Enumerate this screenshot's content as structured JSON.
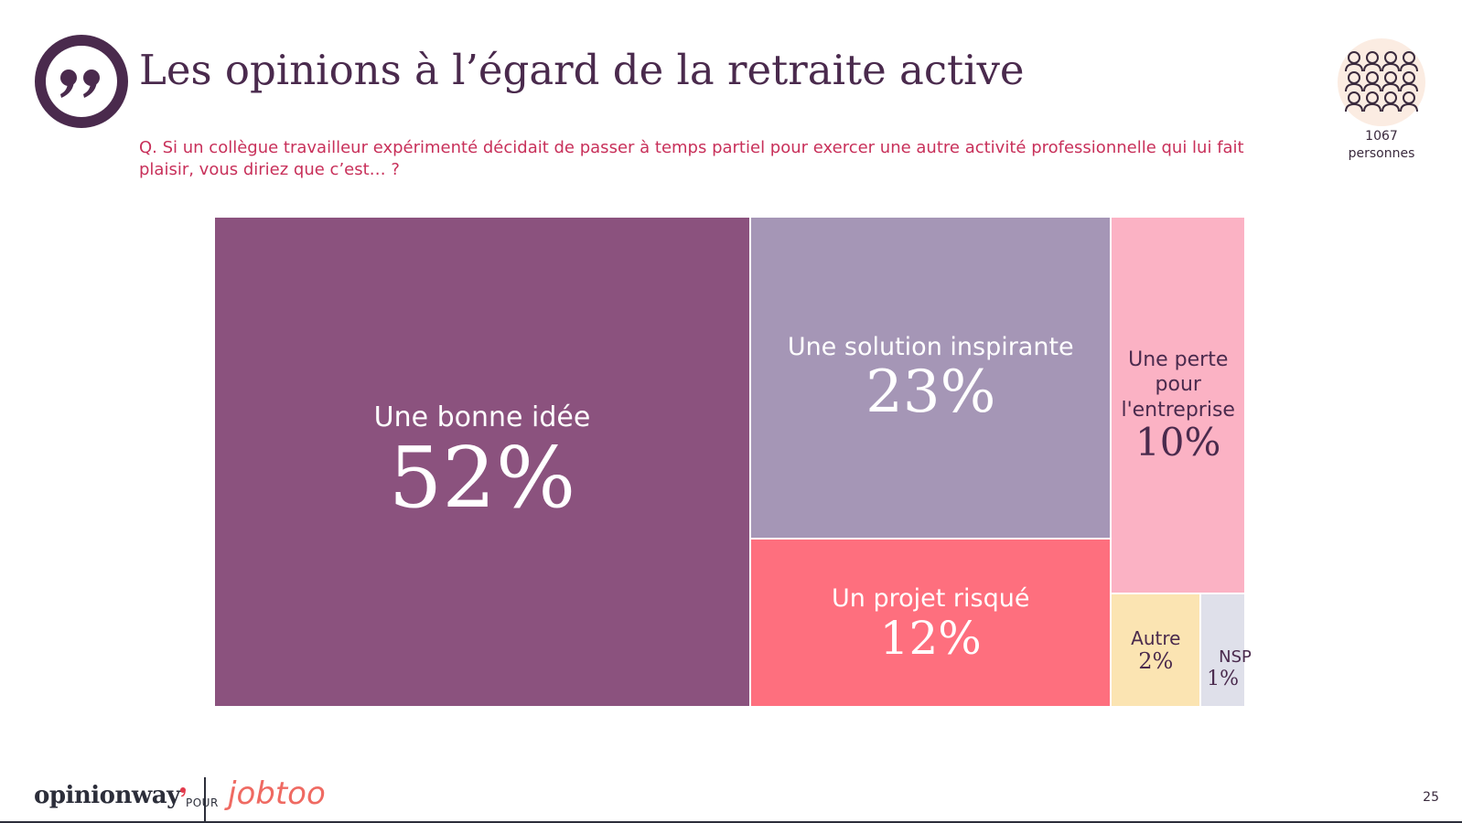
{
  "header": {
    "title": "Les opinions à l’égard de la retraite active",
    "question": "Q. Si un collègue travailleur expérimenté décidait de passer à temps partiel pour exercer une autre activité professionnelle qui lui fait plaisir, vous diriez que c’est… ?"
  },
  "sample": {
    "count": "1067",
    "unit": "personnes",
    "icon": "people-group-icon"
  },
  "icons": {
    "quote": "quote-icon"
  },
  "colors": {
    "title": "#4a2a4d",
    "question": "#c8305a",
    "quote": "#4a2a4d"
  },
  "chart_data": {
    "type": "treemap",
    "title": "Les opinions à l’égard de la retraite active",
    "series": [
      {
        "label": "Une bonne idée",
        "value": 52,
        "display": "52%",
        "color": "#8b527e",
        "text_color": "#ffffff"
      },
      {
        "label": "Une solution inspirante",
        "value": 23,
        "display": "23%",
        "color": "#a596b6",
        "text_color": "#ffffff"
      },
      {
        "label": "Un projet risqué",
        "value": 12,
        "display": "12%",
        "color": "#fe6f7e",
        "text_color": "#ffffff"
      },
      {
        "label": "Une perte pour l'entreprise",
        "value": 10,
        "display": "10%",
        "color": "#fbb2c4",
        "text_color": "#4a2a4d"
      },
      {
        "label": "Autre",
        "value": 2,
        "display": "2%",
        "color": "#fbe4b2",
        "text_color": "#4a2a4d"
      },
      {
        "label": "NSP",
        "value": 1,
        "display": "1%",
        "color": "#dfe0ea",
        "text_color": "#4a2a4d"
      }
    ]
  },
  "footer": {
    "brand": "opinionway",
    "connector": "POUR",
    "partner": "jobtoo",
    "page": "25"
  }
}
